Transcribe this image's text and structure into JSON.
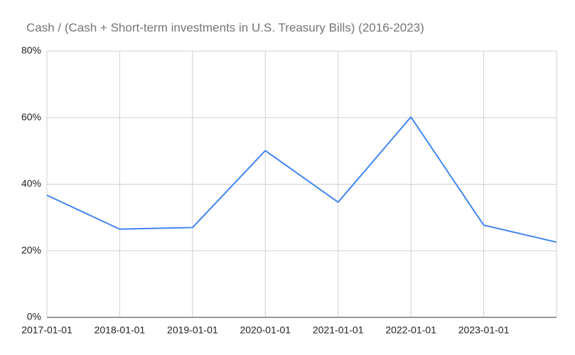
{
  "chart_data": {
    "type": "line",
    "title": "Cash / (Cash + Short-term investments in U.S. Treasury Bills) (2016-2023)",
    "categories": [
      "2017-01-01",
      "2018-01-01",
      "2019-01-01",
      "2020-01-01",
      "2021-01-01",
      "2022-01-01",
      "2023-01-01",
      null
    ],
    "series": [
      {
        "name": "Cash / (Cash + Short-term investments in U.S. Treasury Bills)",
        "color": "#4285f4",
        "values": [
          36.7,
          26.5,
          27.0,
          50.1,
          34.6,
          60.2,
          27.7,
          22.6
        ]
      }
    ],
    "ylim": [
      0,
      80
    ],
    "yticks": [
      {
        "value": 0,
        "label": "0%"
      },
      {
        "value": 20,
        "label": "20%"
      },
      {
        "value": 40,
        "label": "40%"
      },
      {
        "value": 60,
        "label": "60%"
      },
      {
        "value": 80,
        "label": "80%"
      }
    ],
    "grid": true
  }
}
